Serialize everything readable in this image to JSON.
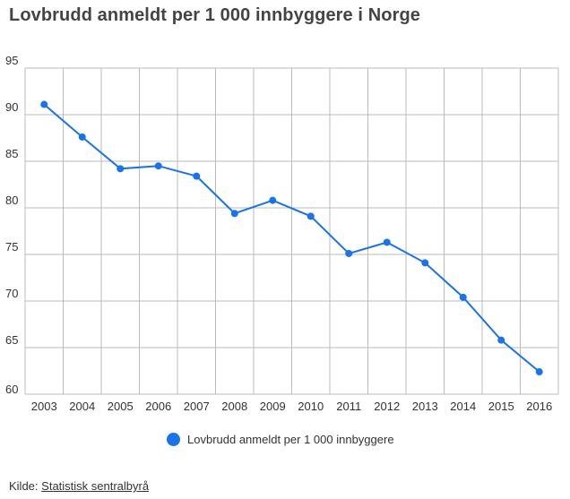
{
  "title": "Lovbrudd anmeldt per 1 000 innbyggere i Norge",
  "source": {
    "label": "Kilde:",
    "link_text": "Statistisk sentralbyrå"
  },
  "colors": {
    "series": "#1a73e8",
    "grid": "#bbbbbb",
    "text": "#333333"
  },
  "chart_data": {
    "type": "line",
    "title": "Lovbrudd anmeldt per 1 000 innbyggere i Norge",
    "x": [
      "2003",
      "2004",
      "2005",
      "2006",
      "2007",
      "2008",
      "2009",
      "2010",
      "2011",
      "2012",
      "2013",
      "2014",
      "2015",
      "2016"
    ],
    "series": [
      {
        "name": "Lovbrudd anmeldt per 1 000 innbyggere",
        "values": [
          91.1,
          87.6,
          84.2,
          84.5,
          83.4,
          79.4,
          80.8,
          79.1,
          75.1,
          76.3,
          74.1,
          70.4,
          65.8,
          62.4
        ]
      }
    ],
    "yticks": [
      60,
      65,
      70,
      75,
      80,
      85,
      90,
      95
    ],
    "ylim": [
      60,
      95
    ],
    "grid": true,
    "legend_position": "bottom"
  }
}
